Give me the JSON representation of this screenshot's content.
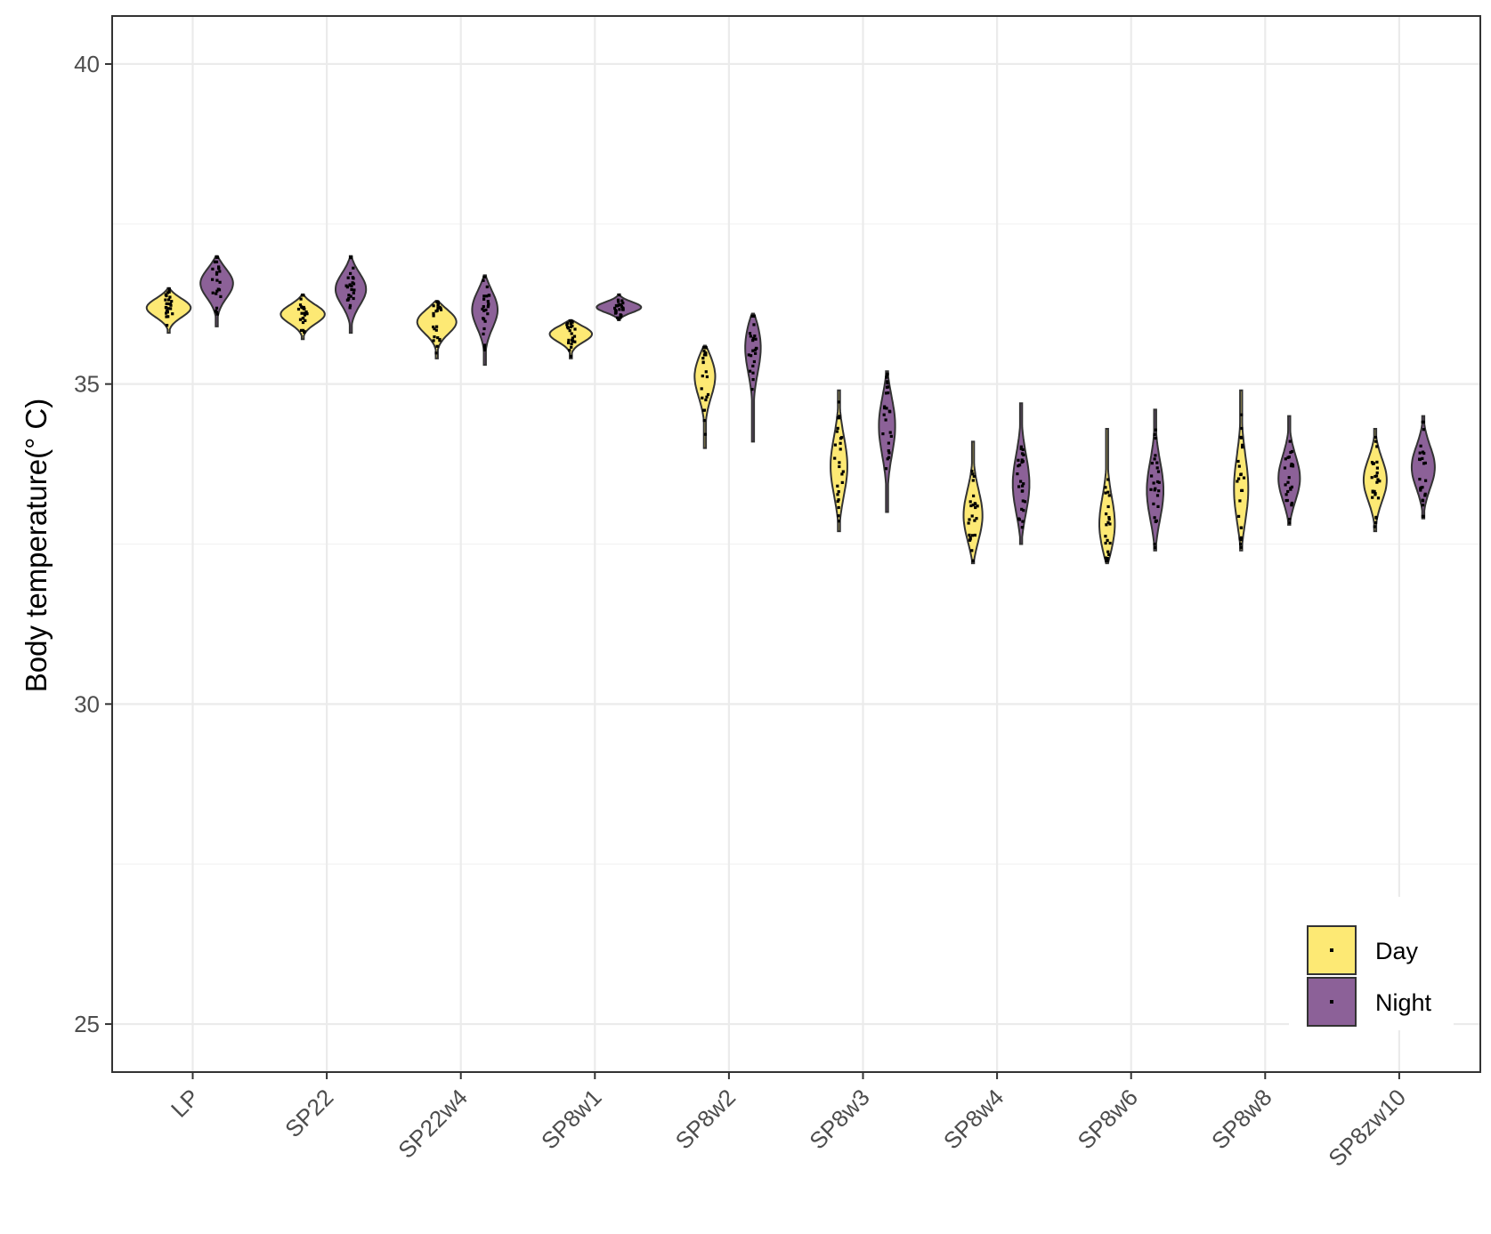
{
  "chart_data": {
    "type": "violin",
    "title": "",
    "xlabel": "",
    "ylabel": "Body temperature(° C)",
    "ylim": [
      24.25,
      40.75
    ],
    "yticks": [
      "25",
      "30",
      "35",
      "40"
    ],
    "grid": true,
    "legend_position": "bottom-right",
    "categories": [
      "LP",
      "SP22",
      "SP22w4",
      "SP8w1",
      "SP8w2",
      "SP8w3",
      "SP8w4",
      "SP8w6",
      "SP8w8",
      "SP8zw10"
    ],
    "series": [
      {
        "name": "Day",
        "color": "#fde974",
        "violins": [
          {
            "min": 35.8,
            "max": 36.5,
            "median": 36.2
          },
          {
            "min": 35.7,
            "max": 36.4,
            "median": 36.1
          },
          {
            "min": 35.4,
            "max": 36.3,
            "median": 36.0
          },
          {
            "min": 35.4,
            "max": 36.0,
            "median": 35.8
          },
          {
            "min": 34.0,
            "max": 35.6,
            "median": 35.2
          },
          {
            "min": 32.7,
            "max": 34.9,
            "median": 33.7
          },
          {
            "min": 32.2,
            "max": 34.1,
            "median": 32.9
          },
          {
            "min": 32.2,
            "max": 34.3,
            "median": 32.7
          },
          {
            "min": 32.4,
            "max": 34.9,
            "median": 33.3
          },
          {
            "min": 32.7,
            "max": 34.3,
            "median": 33.5
          }
        ]
      },
      {
        "name": "Night",
        "color": "#8c6198",
        "violins": [
          {
            "min": 35.9,
            "max": 37.0,
            "median": 36.6
          },
          {
            "min": 35.8,
            "max": 37.0,
            "median": 36.5
          },
          {
            "min": 35.3,
            "max": 36.7,
            "median": 36.2
          },
          {
            "min": 36.0,
            "max": 36.4,
            "median": 36.2
          },
          {
            "min": 34.1,
            "max": 36.1,
            "median": 35.7
          },
          {
            "min": 33.0,
            "max": 35.2,
            "median": 34.4
          },
          {
            "min": 32.5,
            "max": 34.7,
            "median": 33.4
          },
          {
            "min": 32.4,
            "max": 34.6,
            "median": 33.3
          },
          {
            "min": 32.8,
            "max": 34.5,
            "median": 33.5
          },
          {
            "min": 32.9,
            "max": 34.5,
            "median": 33.7
          }
        ]
      }
    ]
  }
}
